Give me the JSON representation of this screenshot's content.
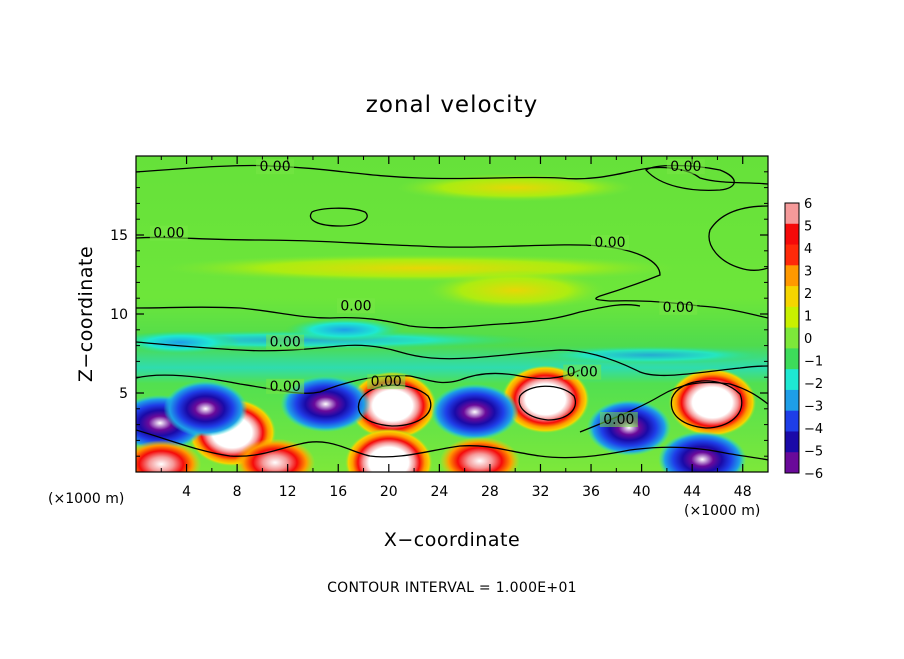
{
  "chart_data": {
    "type": "heatmap",
    "title": "zonal velocity",
    "xlabel": "X−coordinate",
    "ylabel": "Z−coordinate",
    "x_units": "(×1000 m)",
    "z_units": "(×1000 m)",
    "xlim": [
      0,
      50
    ],
    "ylim": [
      0,
      20
    ],
    "x_ticks": [
      {
        "value": 4,
        "label": "4"
      },
      {
        "value": 8,
        "label": "8"
      },
      {
        "value": 12,
        "label": "12"
      },
      {
        "value": 16,
        "label": "16"
      },
      {
        "value": 20,
        "label": "20"
      },
      {
        "value": 24,
        "label": "24"
      },
      {
        "value": 28,
        "label": "28"
      },
      {
        "value": 32,
        "label": "32"
      },
      {
        "value": 36,
        "label": "36"
      },
      {
        "value": 40,
        "label": "40"
      },
      {
        "value": 44,
        "label": "44"
      },
      {
        "value": 48,
        "label": "48"
      }
    ],
    "y_ticks": [
      {
        "value": 5,
        "label": "5"
      },
      {
        "value": 10,
        "label": "10"
      },
      {
        "value": 15,
        "label": "15"
      }
    ],
    "colorbar": {
      "levels": [
        6,
        5,
        4,
        3,
        2,
        1,
        0,
        -1,
        -2,
        -3,
        -4,
        -5,
        -6
      ],
      "labels": [
        "6",
        "5",
        "4",
        "3",
        "2",
        "1",
        "0",
        "−1",
        "−2",
        "−3",
        "−4",
        "−5",
        "−6"
      ],
      "colors": [
        "#f59a9a",
        "#f50a0a",
        "#ff2a0a",
        "#ff9900",
        "#f5d500",
        "#c8f000",
        "#7de83a",
        "#3ddc5a",
        "#1ee8d2",
        "#1e9ee8",
        "#1e3ee8",
        "#1a0aa8",
        "#6a0a9a"
      ]
    },
    "contour_labels": [
      {
        "x": 11,
        "z": 19.1,
        "text": "0.00"
      },
      {
        "x": 43.5,
        "z": 19.1,
        "text": "0.00"
      },
      {
        "x": 2.6,
        "z": 14.9,
        "text": "0.00"
      },
      {
        "x": 37.5,
        "z": 14.3,
        "text": "0.00"
      },
      {
        "x": 17.4,
        "z": 10.3,
        "text": "0.00"
      },
      {
        "x": 42.9,
        "z": 10.2,
        "text": "0.00"
      },
      {
        "x": 11.8,
        "z": 8.0,
        "text": "0.00"
      },
      {
        "x": 11.8,
        "z": 5.2,
        "text": "0.00"
      },
      {
        "x": 19.8,
        "z": 5.5,
        "text": "0.00"
      },
      {
        "x": 35.3,
        "z": 6.1,
        "text": "0.00"
      },
      {
        "x": 38.2,
        "z": 3.1,
        "text": "0.00"
      }
    ],
    "features": [
      {
        "x": 20.3,
        "z": 4.2,
        "value": 6.5
      },
      {
        "x": 32.4,
        "z": 4.6,
        "value": 6
      },
      {
        "x": 45.6,
        "z": 4.4,
        "value": 6.5
      },
      {
        "x": 7.6,
        "z": 2.5,
        "value": 5.5
      },
      {
        "x": 1.9,
        "z": 3.1,
        "value": -6
      },
      {
        "x": 5.5,
        "z": 4.0,
        "value": -4
      },
      {
        "x": 15.0,
        "z": 4.3,
        "value": -5.5
      },
      {
        "x": 26.8,
        "z": 3.8,
        "value": -5
      },
      {
        "x": 39.0,
        "z": 2.8,
        "value": -4
      },
      {
        "x": 44.8,
        "z": 0.8,
        "value": -5
      },
      {
        "x": 20.0,
        "z": 0.6,
        "value": 6
      },
      {
        "x": 2.0,
        "z": 0.5,
        "value": 5
      },
      {
        "x": 11.0,
        "z": 0.6,
        "value": 4.5
      },
      {
        "x": 27.2,
        "z": 0.7,
        "value": 5
      },
      {
        "x": 16.5,
        "z": 9.0,
        "value": -1.5
      },
      {
        "x": 3.5,
        "z": 8.2,
        "value": -2
      },
      {
        "x": 30.0,
        "z": 11.5,
        "value": 1.5
      },
      {
        "x": 30.0,
        "z": 18.0,
        "value": 0.8
      }
    ],
    "contour_interval_text": "CONTOUR INTERVAL = 1.000E+01"
  }
}
